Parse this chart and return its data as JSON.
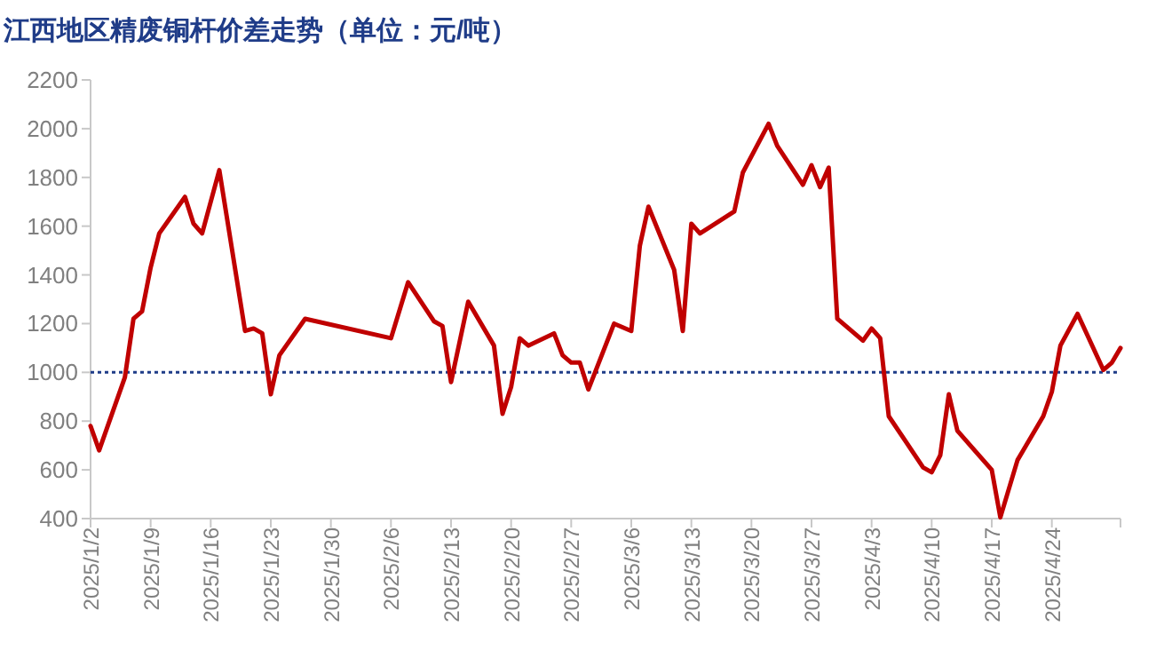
{
  "chart_data": {
    "type": "line",
    "title": "江西地区精废铜杆价差走势（单位：元/吨）",
    "x": [
      "2025-01-02",
      "2025-01-03",
      "2025-01-06",
      "2025-01-07",
      "2025-01-08",
      "2025-01-09",
      "2025-01-10",
      "2025-01-13",
      "2025-01-14",
      "2025-01-15",
      "2025-01-17",
      "2025-01-20",
      "2025-01-21",
      "2025-01-22",
      "2025-01-23",
      "2025-01-24",
      "2025-01-27",
      "2025-02-06",
      "2025-02-08",
      "2025-02-11",
      "2025-02-12",
      "2025-02-13",
      "2025-02-15",
      "2025-02-18",
      "2025-02-19",
      "2025-02-20",
      "2025-02-21",
      "2025-02-22",
      "2025-02-25",
      "2025-02-26",
      "2025-02-27",
      "2025-02-28",
      "2025-03-01",
      "2025-03-04",
      "2025-03-06",
      "2025-03-07",
      "2025-03-08",
      "2025-03-11",
      "2025-03-12",
      "2025-03-13",
      "2025-03-14",
      "2025-03-18",
      "2025-03-19",
      "2025-03-22",
      "2025-03-23",
      "2025-03-26",
      "2025-03-27",
      "2025-03-28",
      "2025-03-29",
      "2025-03-30",
      "2025-04-02",
      "2025-04-03",
      "2025-04-04",
      "2025-04-05",
      "2025-04-09",
      "2025-04-10",
      "2025-04-11",
      "2025-04-12",
      "2025-04-13",
      "2025-04-17",
      "2025-04-18",
      "2025-04-20",
      "2025-04-23",
      "2025-04-24",
      "2025-04-25",
      "2025-04-27",
      "2025-04-30",
      "2025-05-01",
      "2025-05-02"
    ],
    "series": [
      {
        "color": "#c00000",
        "values": [
          780,
          680,
          980,
          1220,
          1250,
          1430,
          1570,
          1720,
          1610,
          1570,
          1830,
          1170,
          1180,
          1160,
          910,
          1070,
          1220,
          1140,
          1370,
          1210,
          1190,
          960,
          1290,
          1110,
          830,
          940,
          1140,
          1110,
          1160,
          1070,
          1040,
          1040,
          930,
          1200,
          1170,
          1520,
          1680,
          1420,
          1170,
          1610,
          1570,
          1660,
          1820,
          2020,
          1930,
          1770,
          1850,
          1760,
          1840,
          1220,
          1130,
          1180,
          1140,
          820,
          610,
          590,
          660,
          910,
          760,
          600,
          405,
          640,
          820,
          920,
          1110,
          1240,
          1010,
          1040,
          1100
        ]
      }
    ],
    "xlim": [
      "2025-01-02",
      "2025-05-02"
    ],
    "xticks": [
      {
        "value": "2025-01-02",
        "label": "2025/1/2"
      },
      {
        "value": "2025-01-09",
        "label": "2025/1/9"
      },
      {
        "value": "2025-01-16",
        "label": "2025/1/16"
      },
      {
        "value": "2025-01-23",
        "label": "2025/1/23"
      },
      {
        "value": "2025-01-30",
        "label": "2025/1/30"
      },
      {
        "value": "2025-02-06",
        "label": "2025/2/6"
      },
      {
        "value": "2025-02-13",
        "label": "2025/2/13"
      },
      {
        "value": "2025-02-20",
        "label": "2025/2/20"
      },
      {
        "value": "2025-02-27",
        "label": "2025/2/27"
      },
      {
        "value": "2025-03-06",
        "label": "2025/3/6"
      },
      {
        "value": "2025-03-13",
        "label": "2025/3/13"
      },
      {
        "value": "2025-03-20",
        "label": "2025/3/20"
      },
      {
        "value": "2025-03-27",
        "label": "2025/3/27"
      },
      {
        "value": "2025-04-03",
        "label": "2025/4/3"
      },
      {
        "value": "2025-04-10",
        "label": "2025/4/10"
      },
      {
        "value": "2025-04-17",
        "label": "2025/4/17"
      },
      {
        "value": "2025-04-24",
        "label": "2025/4/24"
      }
    ],
    "ylim": [
      400,
      2200
    ],
    "yticks": [
      400,
      600,
      800,
      1000,
      1200,
      1400,
      1600,
      1800,
      2000,
      2200
    ],
    "ref_lines": [
      {
        "axis": "y",
        "value": 1000,
        "color": "#1f3c88",
        "line_style": "dotted"
      }
    ]
  }
}
